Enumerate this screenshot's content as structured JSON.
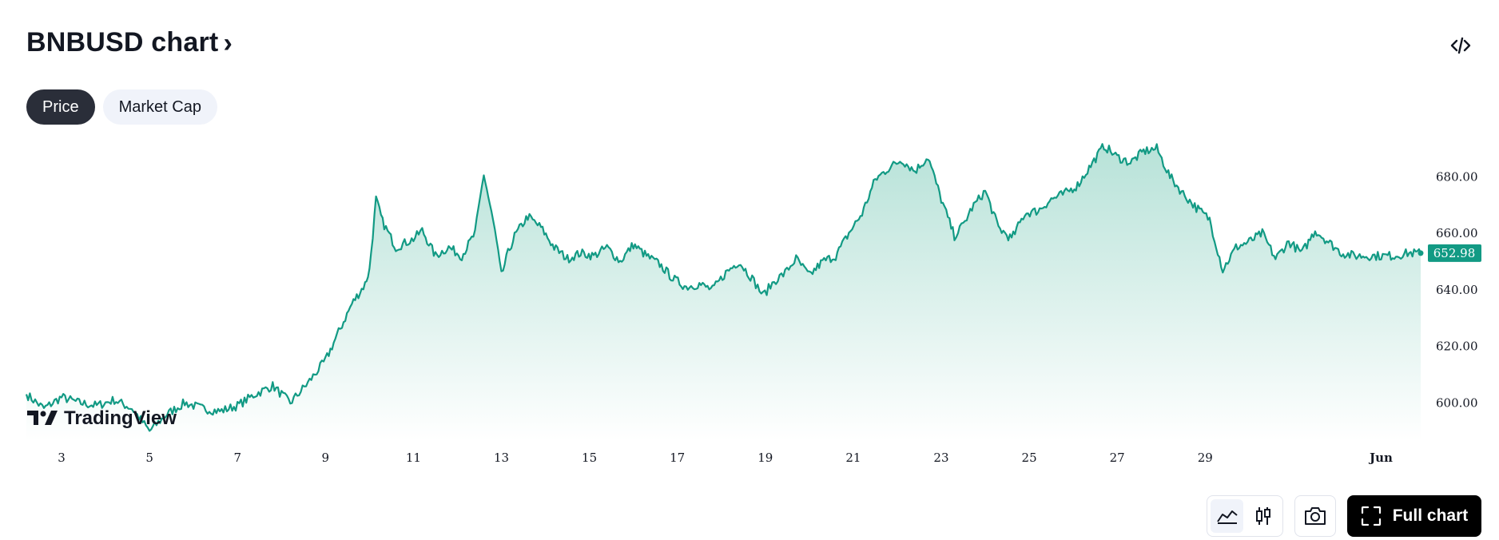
{
  "header": {
    "title": "BNBUSD chart",
    "title_chevron": "›",
    "embed_icon": "code-embed-icon"
  },
  "tabs": [
    {
      "label": "Price",
      "active": true
    },
    {
      "label": "Market Cap",
      "active": false
    }
  ],
  "watermark": {
    "text": "TradingView",
    "logo": "tradingview-logo-icon"
  },
  "toolbar": {
    "area_icon": "area-chart-icon",
    "candles_icon": "candlestick-icon",
    "snapshot_icon": "camera-icon",
    "fullchart_icon": "fullscreen-icon",
    "fullchart_label": "Full chart"
  },
  "colors": {
    "line": "#129a84",
    "fill_top": "#b7e2d8",
    "fill_bottom": "#ffffff",
    "price_tag_bg": "#129a84",
    "axis_text": "#131722"
  },
  "chart_data": {
    "type": "area",
    "x_tick_labels": [
      "3",
      "5",
      "7",
      "9",
      "11",
      "13",
      "15",
      "17",
      "19",
      "21",
      "23",
      "25",
      "27",
      "29",
      "Jun"
    ],
    "x_ticks": [
      3,
      5,
      7,
      9,
      11,
      13,
      15,
      17,
      19,
      21,
      23,
      25,
      27,
      29,
      33
    ],
    "y_ticks": [
      600,
      620,
      640,
      660,
      680
    ],
    "y_tick_labels": [
      "600.00",
      "620.00",
      "640.00",
      "660.00",
      "680.00"
    ],
    "xlim": [
      2.2,
      33.9
    ],
    "ylim": [
      586.5,
      694.5
    ],
    "last_price": "652.98",
    "grid": false,
    "legend": "none",
    "x": [
      2.2,
      2.6,
      3.0,
      3.4,
      3.8,
      4.2,
      4.6,
      5.0,
      5.4,
      5.8,
      6.2,
      6.6,
      7.0,
      7.4,
      7.8,
      8.2,
      8.6,
      9.0,
      9.3,
      9.6,
      9.9,
      10.0,
      10.15,
      10.3,
      10.6,
      11.0,
      11.2,
      11.5,
      11.8,
      12.1,
      12.4,
      12.6,
      12.7,
      12.85,
      13.0,
      13.15,
      13.3,
      13.6,
      13.9,
      14.2,
      14.5,
      14.8,
      15.1,
      15.4,
      15.7,
      16.0,
      16.3,
      16.6,
      16.9,
      17.2,
      17.5,
      17.8,
      18.1,
      18.4,
      18.7,
      18.95,
      19.2,
      19.45,
      19.7,
      20.0,
      20.3,
      20.6,
      20.9,
      21.2,
      21.5,
      21.8,
      22.1,
      22.4,
      22.7,
      23.0,
      23.3,
      23.5,
      23.7,
      24.0,
      24.3,
      24.6,
      24.9,
      25.2,
      25.5,
      25.8,
      26.1,
      26.4,
      26.7,
      27.0,
      27.3,
      27.6,
      27.9,
      28.2,
      28.5,
      28.8,
      29.1,
      29.4,
      29.7,
      30.0,
      30.3,
      30.6,
      30.9,
      31.2,
      31.5,
      31.8,
      32.1,
      32.4,
      32.7,
      33.0,
      33.3,
      33.6,
      33.9
    ],
    "y": [
      603,
      598,
      602,
      600,
      599,
      601,
      598,
      590,
      596,
      600,
      598,
      597,
      599,
      603,
      606,
      600,
      607,
      615,
      625,
      635,
      642,
      647,
      672,
      664,
      655,
      658,
      661,
      652,
      655,
      652,
      660,
      681,
      673,
      661,
      645,
      653,
      659,
      666,
      662,
      655,
      651,
      653,
      652,
      655,
      650,
      656,
      652,
      649,
      644,
      641,
      642,
      640,
      646,
      650,
      644,
      638,
      643,
      646,
      651,
      645,
      650,
      652,
      660,
      667,
      679,
      683,
      686,
      682,
      687,
      672,
      659,
      663,
      669,
      675,
      662,
      658,
      667,
      668,
      672,
      674,
      677,
      684,
      691,
      687,
      685,
      689,
      690,
      680,
      674,
      669,
      665,
      647,
      655,
      657,
      660,
      651,
      657,
      653,
      661,
      657,
      653,
      652,
      652,
      652,
      652,
      652.98,
      652.98
    ]
  }
}
